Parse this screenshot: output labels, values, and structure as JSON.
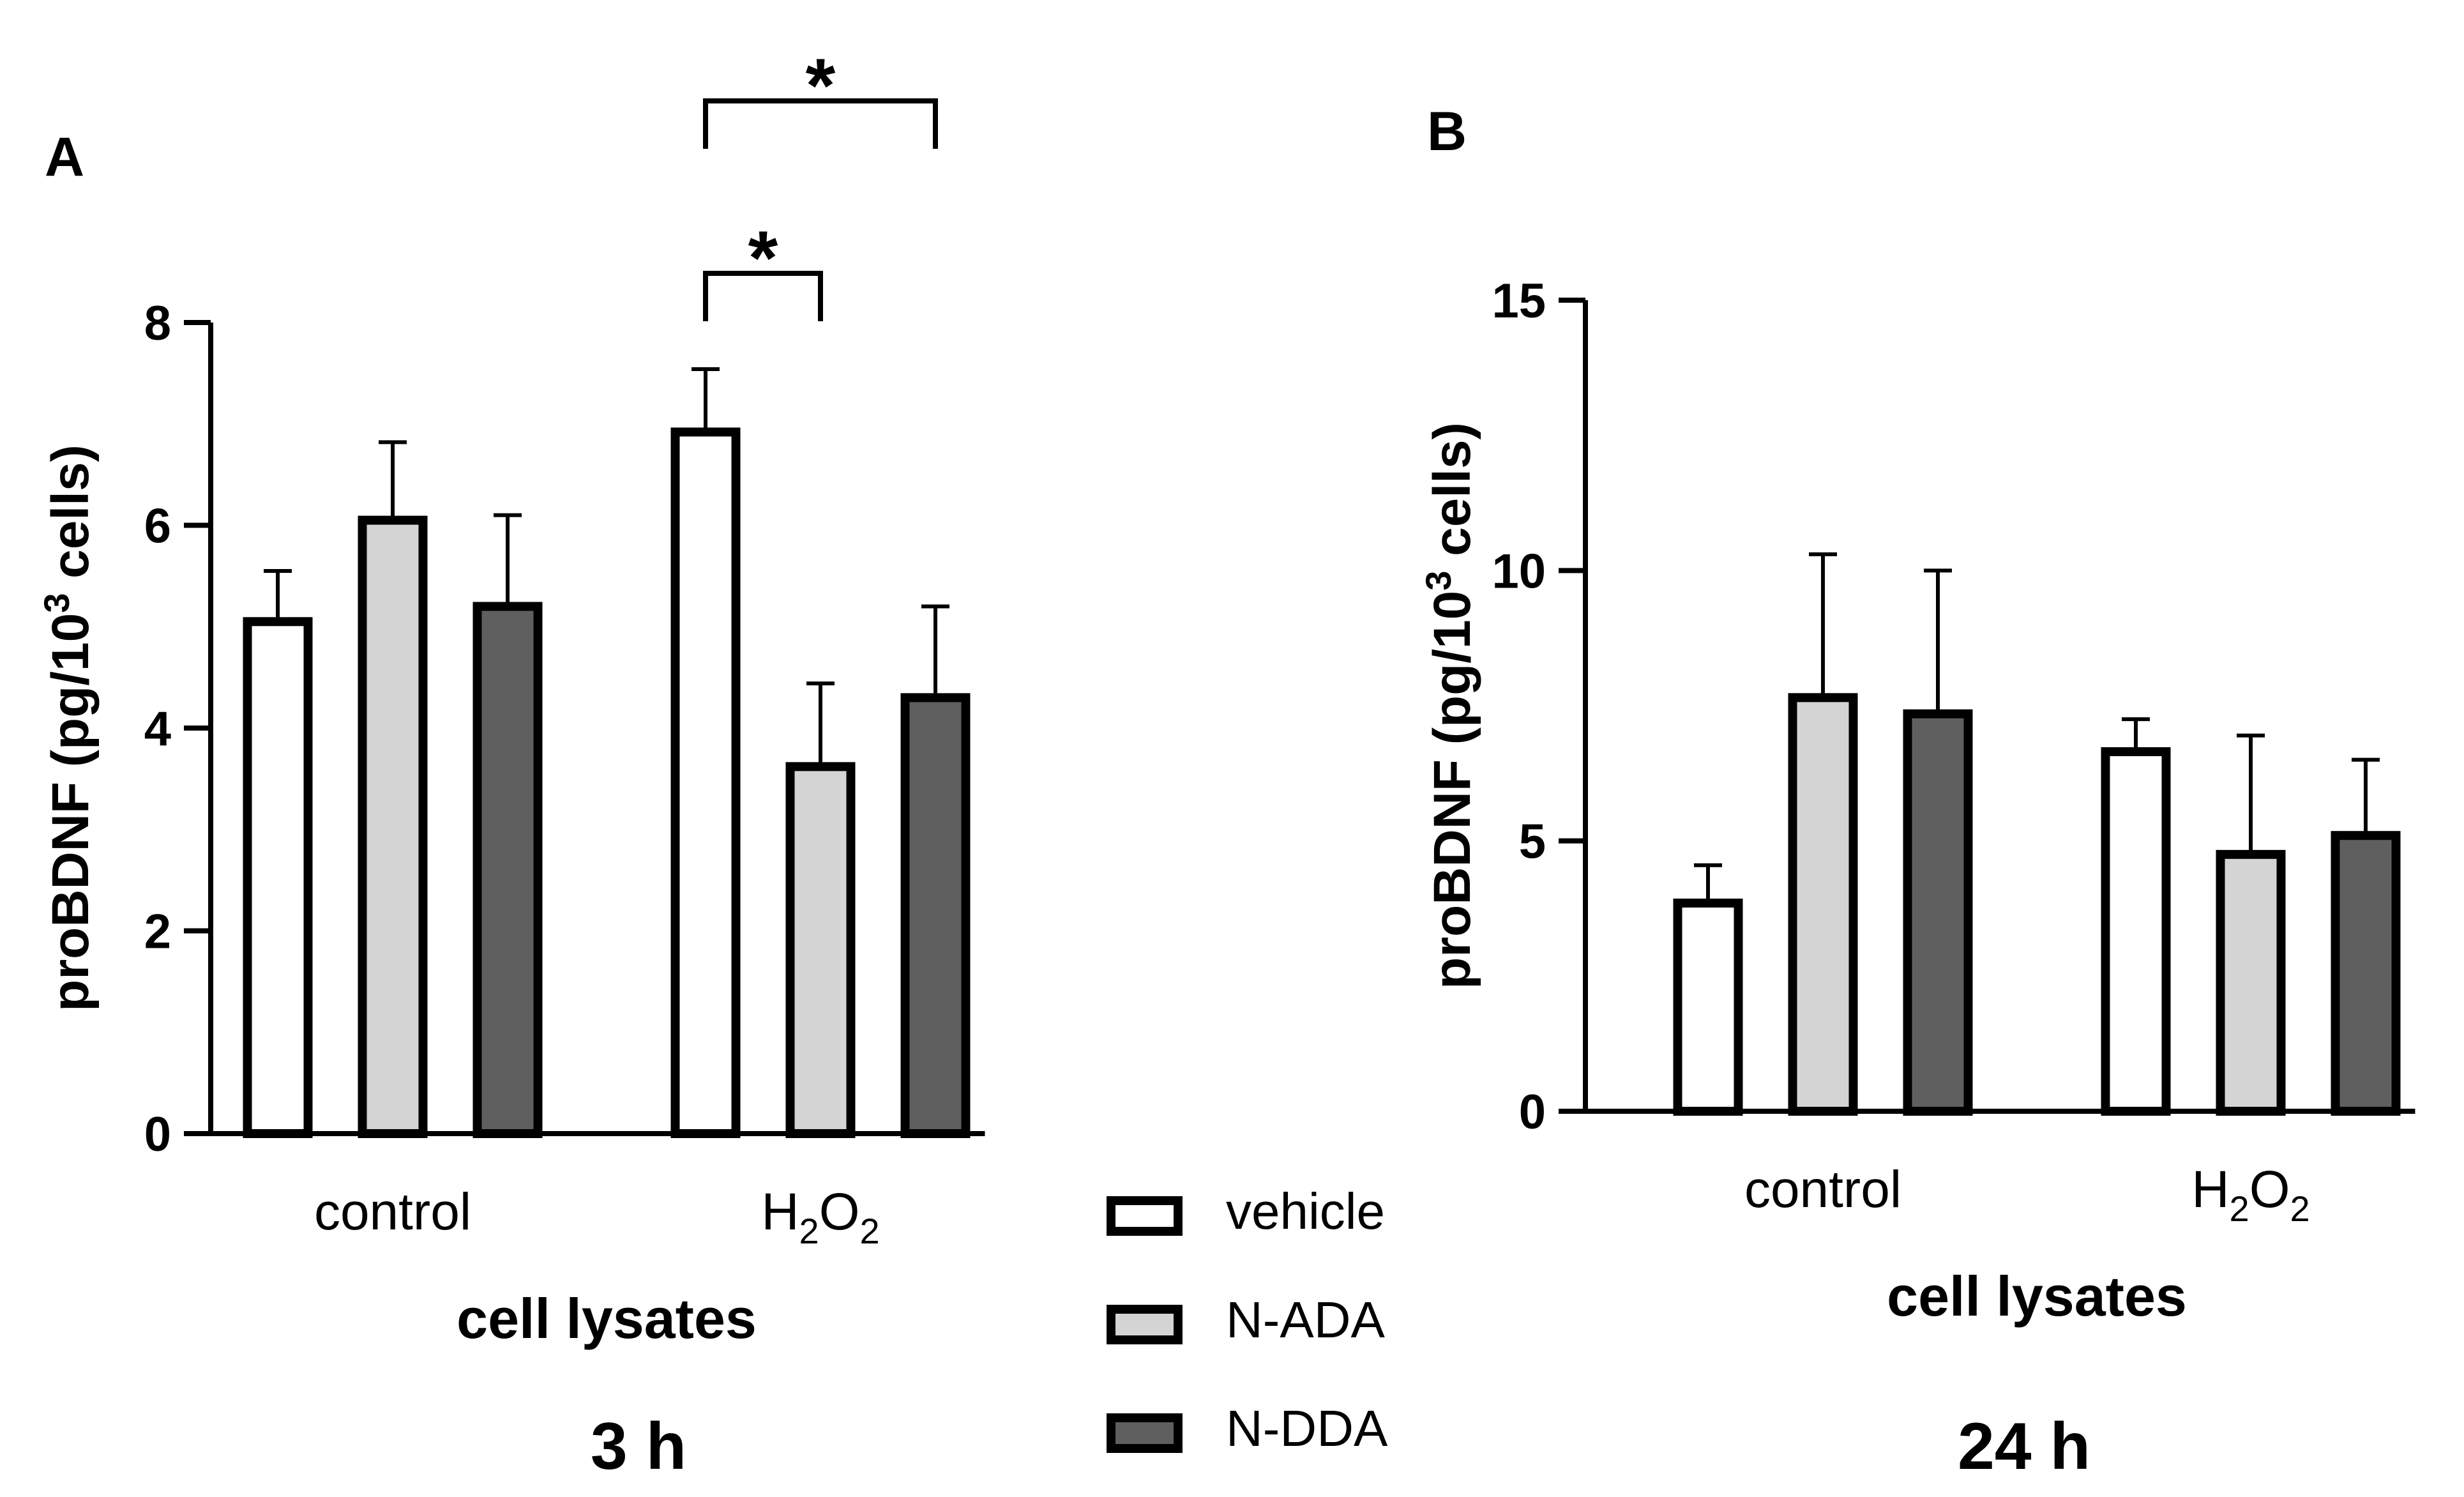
{
  "chart_data": [
    {
      "type": "bar",
      "panel": "A",
      "ylabel": "proBDNF (pg/10³ cells)",
      "ylabel_main": "proBDNF (pg/10",
      "ylabel_sup": "3",
      "ylabel_end": " cells)",
      "xlabel": "cell lysates",
      "time": "3 h",
      "ylim": [
        0,
        8
      ],
      "yticks": [
        "0",
        "2",
        "4",
        "6",
        "8"
      ],
      "categories": [
        "control",
        "H2O2"
      ],
      "category_parts": [
        {
          "main": "control",
          "sub": "",
          "tail": ""
        },
        {
          "main": "H",
          "sub": "2",
          "tail": "O",
          "sub2": "2"
        }
      ],
      "series": [
        {
          "name": "vehicle",
          "values": [
            5.05,
            6.92
          ],
          "errors": [
            0.5,
            0.62
          ]
        },
        {
          "name": "N-ADA",
          "values": [
            6.05,
            3.62
          ],
          "errors": [
            0.77,
            0.82
          ]
        },
        {
          "name": "N-DDA",
          "values": [
            5.2,
            4.3
          ],
          "errors": [
            0.9,
            0.9
          ]
        }
      ],
      "significance": [
        {
          "category": "H2O2",
          "from": "vehicle",
          "to": "N-ADA",
          "label": "*"
        },
        {
          "category": "H2O2",
          "from": "vehicle",
          "to": "N-DDA",
          "label": "*"
        }
      ]
    },
    {
      "type": "bar",
      "panel": "B",
      "ylabel": "proBDNF (pg/10³ cells)",
      "ylabel_main": "proBDNF (pg/10",
      "ylabel_sup": "3",
      "ylabel_end": " cells)",
      "xlabel": "cell lysates",
      "time": "24 h",
      "ylim": [
        0,
        15
      ],
      "yticks": [
        "0",
        "5",
        "10",
        "15"
      ],
      "categories": [
        "control",
        "H2O2"
      ],
      "category_parts": [
        {
          "main": "control",
          "sub": "",
          "tail": ""
        },
        {
          "main": "H",
          "sub": "2",
          "tail": "O",
          "sub2": "2"
        }
      ],
      "series": [
        {
          "name": "vehicle",
          "values": [
            3.85,
            6.65
          ],
          "errors": [
            0.7,
            0.6
          ]
        },
        {
          "name": "N-ADA",
          "values": [
            7.65,
            4.75
          ],
          "errors": [
            2.65,
            2.2
          ]
        },
        {
          "name": "N-DDA",
          "values": [
            7.35,
            5.1
          ],
          "errors": [
            2.65,
            1.4
          ]
        }
      ],
      "significance": []
    }
  ],
  "legend": [
    {
      "name": "vehicle",
      "color": "#ffffff"
    },
    {
      "name": "N-ADA",
      "color": "#d4d4d4"
    },
    {
      "name": "N-DDA",
      "color": "#5f5f5f"
    }
  ],
  "colors": {
    "vehicle": "#ffffff",
    "N-ADA": "#d4d4d4",
    "N-DDA": "#5f5f5f",
    "stroke": "#000000"
  }
}
